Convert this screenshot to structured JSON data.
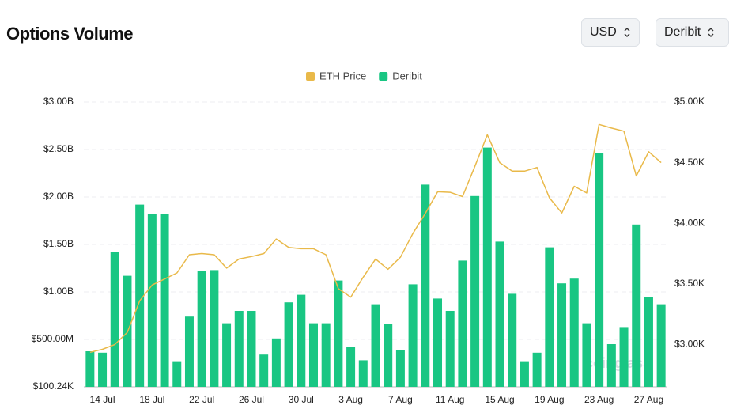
{
  "header": {
    "title": "Options Volume",
    "buttons": [
      "USD",
      "Deribit"
    ]
  },
  "chart_data": {
    "type": "bar",
    "categories": [
      null,
      "14 Jul",
      null,
      null,
      null,
      "18 Jul",
      null,
      null,
      null,
      "22 Jul",
      null,
      null,
      null,
      "26 Jul",
      null,
      null,
      null,
      "30 Jul",
      null,
      null,
      null,
      "3 Aug",
      null,
      null,
      null,
      "7 Aug",
      null,
      null,
      null,
      "11 Aug",
      null,
      null,
      null,
      "15 Aug",
      null,
      null,
      null,
      "19 Aug",
      null,
      null,
      null,
      "23 Aug",
      null,
      null,
      null,
      "27 Aug",
      null
    ],
    "series": [
      {
        "name": "ETH Price",
        "type": "line",
        "axis": "y2",
        "color": "#e9b949",
        "values": [
          2935,
          2960,
          3000,
          3100,
          3360,
          3490,
          3540,
          3590,
          3740,
          3750,
          3740,
          3630,
          3705,
          3725,
          3750,
          3870,
          3800,
          3790,
          3790,
          3740,
          3460,
          3390,
          3555,
          3705,
          3620,
          3720,
          3915,
          4080,
          4260,
          4255,
          4220,
          4470,
          4730,
          4500,
          4430,
          4430,
          4460,
          4210,
          4085,
          4305,
          4250,
          4815,
          4785,
          4760,
          4390,
          4590,
          4500
        ]
      },
      {
        "name": "Deribit",
        "type": "bar",
        "color": "#19c683",
        "values": [
          375000000,
          360000000,
          1420000000,
          1170000000,
          1920000000,
          1820000000,
          1820000000,
          270000000,
          740000000,
          1220000000,
          1230000000,
          670000000,
          800000000,
          800000000,
          340000000,
          510000000,
          890000000,
          970000000,
          670000000,
          670000000,
          1120000000,
          420000000,
          280000000,
          870000000,
          660000000,
          390000000,
          1080000000,
          2130000000,
          930000000,
          800000000,
          1330000000,
          2010000000,
          2520000000,
          1530000000,
          980000000,
          270000000,
          360000000,
          1470000000,
          1090000000,
          1140000000,
          670000000,
          2460000000,
          450000000,
          630000000,
          1710000000,
          950000000,
          870000000
        ]
      }
    ],
    "ylim": [
      100240,
      3000000000
    ],
    "yticks": [
      {
        "value": 100240,
        "label": "$100.24K"
      },
      {
        "value": 500000000,
        "label": "$500.00M"
      },
      {
        "value": 1000000000,
        "label": "$1.00B"
      },
      {
        "value": 1500000000,
        "label": "$1.50B"
      },
      {
        "value": 2000000000,
        "label": "$2.00B"
      },
      {
        "value": 2500000000,
        "label": "$2.50B"
      },
      {
        "value": 3000000000,
        "label": "$3.00B"
      }
    ],
    "y2lim": [
      2650,
      5000
    ],
    "y2ticks": [
      {
        "value": 3000,
        "label": "$3.00K"
      },
      {
        "value": 3500,
        "label": "$3.50K"
      },
      {
        "value": 4000,
        "label": "$4.00K"
      },
      {
        "value": 4500,
        "label": "$4.50K"
      },
      {
        "value": 5000,
        "label": "$5.00K"
      }
    ],
    "grid": true,
    "legend": "top",
    "watermark": "coinglass"
  }
}
